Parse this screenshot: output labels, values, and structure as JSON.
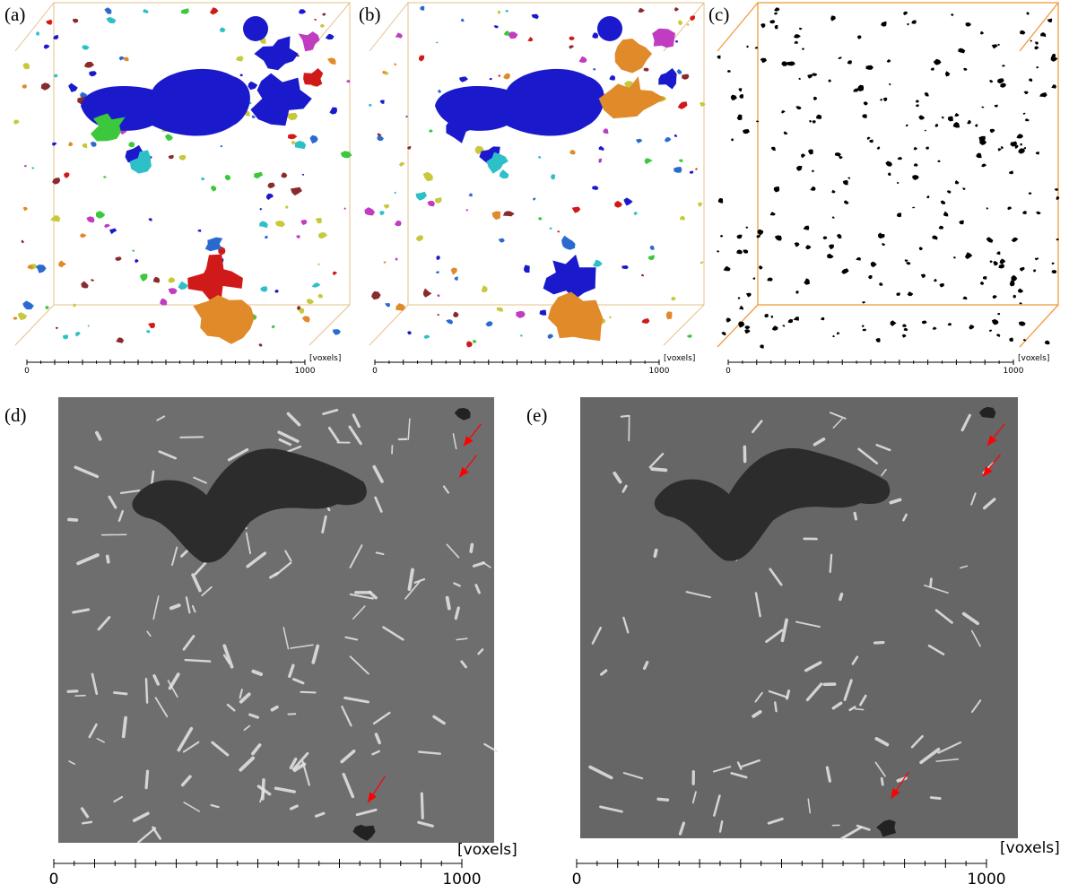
{
  "panels": [
    {
      "label": "(a)",
      "scale": {
        "min": 0,
        "max": 1000,
        "unit": "[voxels]"
      }
    },
    {
      "label": "(b)",
      "scale": {
        "min": 0,
        "max": 1000,
        "unit": "[voxels]"
      }
    },
    {
      "label": "(c)",
      "scale": {
        "min": 0,
        "max": 1000,
        "unit": "[voxels]"
      }
    },
    {
      "label": "(d)",
      "scale": {
        "min": 0,
        "max": 1000,
        "unit": "[voxels]"
      }
    },
    {
      "label": "(e)",
      "scale": {
        "min": 0,
        "max": 1000,
        "unit": "[voxels]"
      }
    }
  ]
}
